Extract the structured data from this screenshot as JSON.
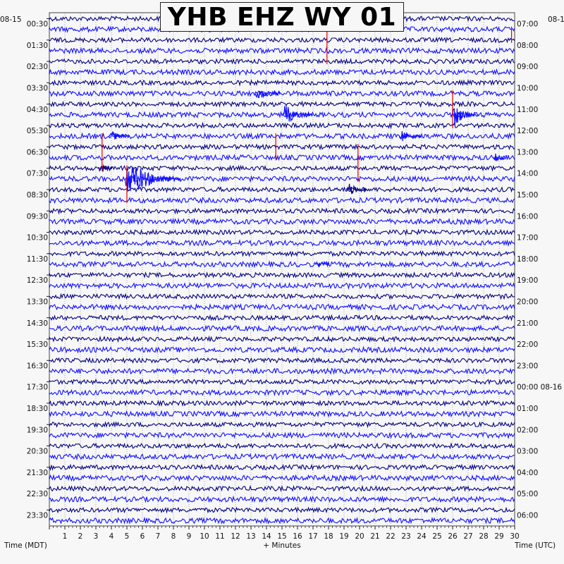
{
  "chart_data": {
    "type": "helicorder",
    "title": "YHB EHZ WY 01",
    "left_top_date": "08-15",
    "right_top_date": "08-1",
    "left_axis_label": "Time (MDT)",
    "right_axis_label": "Time (UTC)",
    "x_axis_label": "+ Minutes",
    "x_range": [
      0,
      30
    ],
    "x_ticks": [
      "1",
      "2",
      "3",
      "4",
      "5",
      "6",
      "7",
      "8",
      "9",
      "10",
      "11",
      "12",
      "13",
      "14",
      "15",
      "16",
      "17",
      "18",
      "19",
      "20",
      "21",
      "22",
      "23",
      "24",
      "25",
      "26",
      "27",
      "28",
      "29",
      "30"
    ],
    "left_times": [
      "00:30",
      "01:30",
      "02:30",
      "03:30",
      "04:30",
      "05:30",
      "06:30",
      "07:30",
      "08:30",
      "09:30",
      "10:30",
      "11:30",
      "12:30",
      "13:30",
      "14:30",
      "15:30",
      "16:30",
      "17:30",
      "18:30",
      "19:30",
      "20:30",
      "21:30",
      "22:30",
      "23:30"
    ],
    "right_times": [
      "07:00",
      "08:00",
      "09:00",
      "10:00",
      "11:00",
      "12:00",
      "13:00",
      "14:00",
      "15:00",
      "16:00",
      "17:00",
      "18:00",
      "19:00",
      "20:00",
      "21:00",
      "22:00",
      "23:00",
      "00:00 08-16",
      "01:00",
      "02:00",
      "03:00",
      "04:00",
      "05:00",
      "06:00"
    ],
    "trace_count": 48,
    "trace_colors": [
      "#000080",
      "#1010ff"
    ],
    "grid": true,
    "events": [
      {
        "trace": 7,
        "minute": 13.4,
        "amp": 11,
        "dur": 1.5,
        "decay": 0.55
      },
      {
        "trace": 9,
        "minute": 15.2,
        "amp": 16,
        "dur": 1.8,
        "decay": 0.6
      },
      {
        "trace": 9,
        "minute": 26.1,
        "amp": 18,
        "dur": 1.6,
        "decay": 0.55
      },
      {
        "trace": 11,
        "minute": 4.0,
        "amp": 8,
        "dur": 1.2,
        "decay": 0.5
      },
      {
        "trace": 11,
        "minute": 22.7,
        "amp": 11,
        "dur": 1.3,
        "decay": 0.5
      },
      {
        "trace": 13,
        "minute": 28.8,
        "amp": 7,
        "dur": 0.6,
        "decay": 0.4
      },
      {
        "trace": 14,
        "minute": 3.3,
        "amp": 8,
        "dur": 0.8,
        "decay": 0.4
      },
      {
        "trace": 15,
        "minute": 5.0,
        "amp": 30,
        "dur": 3.5,
        "decay": 1.2
      },
      {
        "trace": 16,
        "minute": 19.3,
        "amp": 10,
        "dur": 1.2,
        "decay": 0.5
      },
      {
        "trace": 23,
        "minute": 17.4,
        "amp": 4,
        "dur": 0.6,
        "decay": 0.3
      }
    ],
    "red_marks": [
      {
        "minute": 17.9,
        "trace_start": 1,
        "trace_end": 4
      },
      {
        "minute": 29.8,
        "trace_start": 1,
        "trace_end": 2
      },
      {
        "minute": 26.0,
        "trace_start": 7,
        "trace_end": 10
      },
      {
        "minute": 3.4,
        "trace_start": 11,
        "trace_end": 14
      },
      {
        "minute": 14.6,
        "trace_start": 11,
        "trace_end": 13
      },
      {
        "minute": 19.9,
        "trace_start": 12,
        "trace_end": 15
      },
      {
        "minute": 5.0,
        "trace_start": 14,
        "trace_end": 17
      }
    ]
  }
}
